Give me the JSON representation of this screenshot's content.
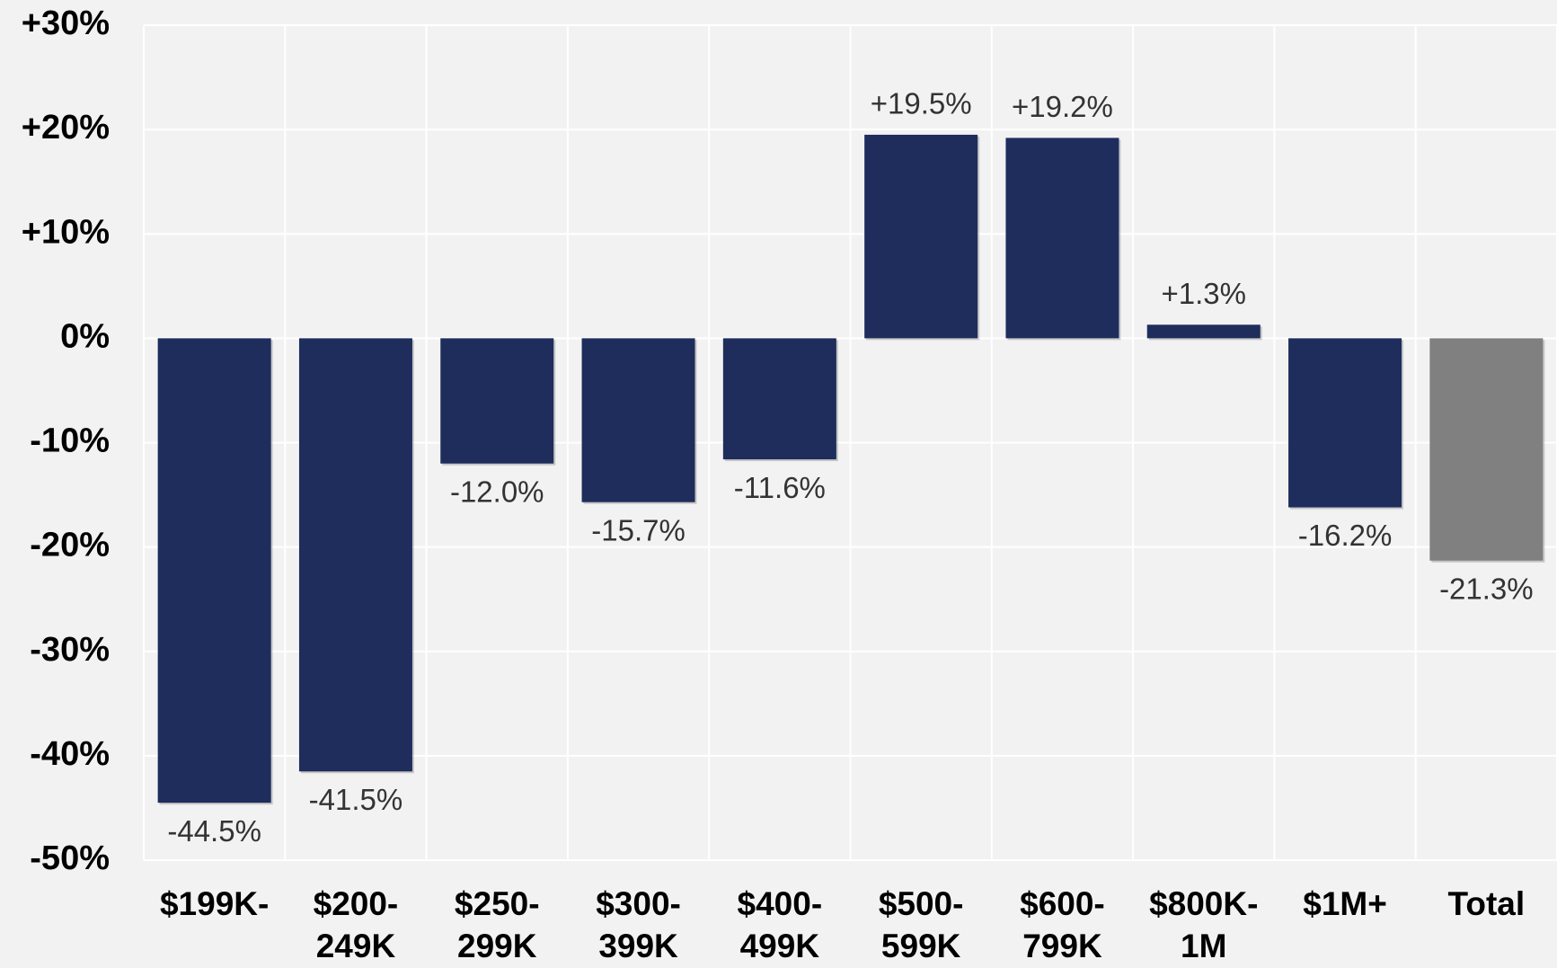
{
  "chart_data": {
    "type": "bar",
    "categories": [
      [
        "$199K-"
      ],
      [
        "$200-",
        "249K"
      ],
      [
        "$250-",
        "299K"
      ],
      [
        "$300-",
        "399K"
      ],
      [
        "$400-",
        "499K"
      ],
      [
        "$500-",
        "599K"
      ],
      [
        "$600-",
        "799K"
      ],
      [
        "$800K-",
        "1M"
      ],
      [
        "$1M+"
      ],
      [
        "Total"
      ]
    ],
    "values": [
      -44.5,
      -41.5,
      -12.0,
      -15.7,
      -11.6,
      19.5,
      19.2,
      1.3,
      -16.2,
      -21.3
    ],
    "value_labels": [
      "-44.5%",
      "-41.5%",
      "-12.0%",
      "-15.7%",
      "-11.6%",
      "+19.5%",
      "+19.2%",
      "+1.3%",
      "-16.2%",
      "-21.3%"
    ],
    "colors": [
      "#1f2d5c",
      "#1f2d5c",
      "#1f2d5c",
      "#1f2d5c",
      "#1f2d5c",
      "#1f2d5c",
      "#1f2d5c",
      "#1f2d5c",
      "#1f2d5c",
      "#808080"
    ],
    "ylim": [
      -50,
      30
    ],
    "yticks": [
      {
        "value": 30,
        "label": "+30%"
      },
      {
        "value": 20,
        "label": "+20%"
      },
      {
        "value": 10,
        "label": "+10%"
      },
      {
        "value": 0,
        "label": "0%"
      },
      {
        "value": -10,
        "label": "-10%"
      },
      {
        "value": -20,
        "label": "-20%"
      },
      {
        "value": -30,
        "label": "-30%"
      },
      {
        "value": -40,
        "label": "-40%"
      },
      {
        "value": -50,
        "label": "-50%"
      }
    ],
    "grid": true
  }
}
